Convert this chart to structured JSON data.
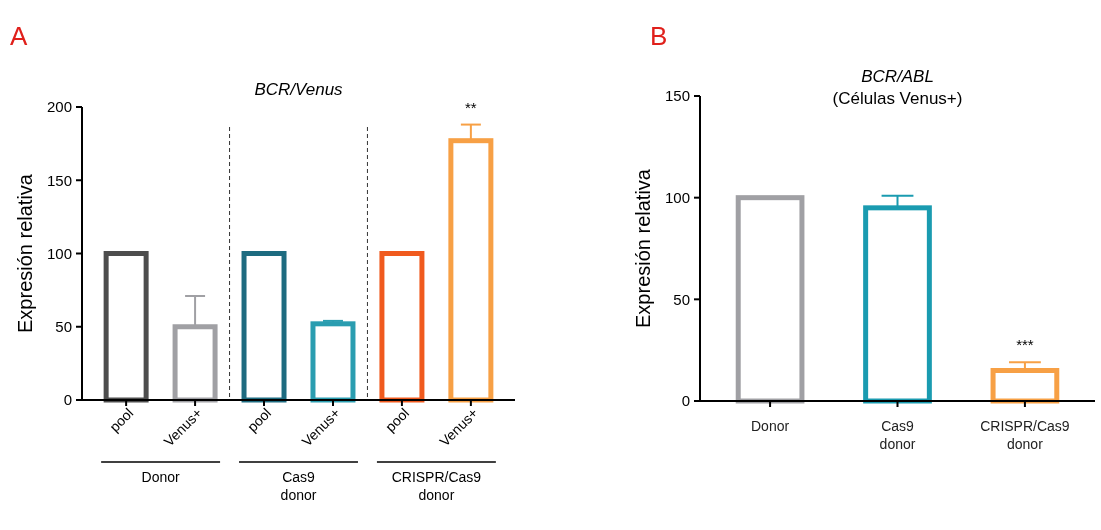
{
  "chart_data": [
    {
      "type": "bar",
      "title": "BCR/Venus",
      "ylabel": "Expresión relativa",
      "categories": [
        "pool",
        "Venus+",
        "pool",
        "Venus+",
        "pool",
        "Venus+"
      ],
      "values": [
        100,
        50,
        100,
        52,
        100,
        177
      ],
      "colors": [
        "#4d4d4d",
        "#a0a0a4",
        "#1d6b80",
        "#2a9db0",
        "#f05a1e",
        "#f7a045"
      ],
      "errors": [
        null,
        [
          50,
          71
        ],
        null,
        [
          52,
          54
        ],
        null,
        [
          177,
          188
        ]
      ],
      "ylim": [
        0,
        200
      ],
      "yticks": [
        0,
        50,
        100,
        150,
        200
      ],
      "grid": false,
      "annotations": [
        "A",
        "**",
        "Donor",
        "Cas9 donor",
        "CRISPR/Cas9 donor"
      ]
    },
    {
      "type": "bar",
      "title": "BCR/ABL",
      "subtitle": "(Células Venus+)",
      "ylabel": "Expresión relativa",
      "categories": [
        "Donor",
        "Cas9 donor",
        "CRISPR/Cas9 donor"
      ],
      "values": [
        100,
        95,
        15
      ],
      "colors": [
        "#a0a0a4",
        "#1a9bb0",
        "#f7a045"
      ],
      "errors": [
        null,
        [
          95,
          101
        ],
        [
          15,
          19
        ]
      ],
      "ylim": [
        0,
        150
      ],
      "yticks": [
        0,
        50,
        100,
        150
      ],
      "grid": false,
      "annotations": [
        "B",
        "***"
      ]
    }
  ]
}
